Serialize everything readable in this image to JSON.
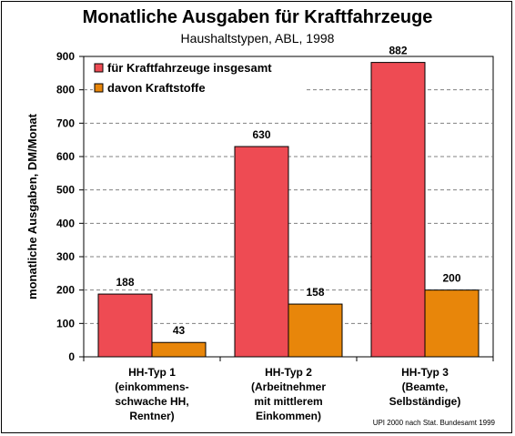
{
  "chart_data": {
    "type": "bar",
    "title": "Monatliche Ausgaben für Kraftfahrzeuge",
    "subtitle": "Haushaltstypen, ABL, 1998",
    "ylabel": "monatliche Ausgaben, DM/Monat",
    "xlabel": "",
    "ylim": [
      0,
      900
    ],
    "yticks": [
      0,
      100,
      200,
      300,
      400,
      500,
      600,
      700,
      800,
      900
    ],
    "grid": "horizontal-dashed",
    "legend_position": "top-left",
    "categories": [
      [
        "HH-Typ 1",
        "(einkommens-",
        "schwache HH,",
        "Rentner)"
      ],
      [
        "HH-Typ 2",
        "(Arbeitnehmer",
        "mit mittlerem",
        "Einkommen)"
      ],
      [
        "HH-Typ 3",
        "(Beamte,",
        "Selbständige)"
      ]
    ],
    "series": [
      {
        "name": "für Kraftfahrzeuge insgesamt",
        "color": "#ee4b53",
        "values": [
          188,
          630,
          882
        ]
      },
      {
        "name": "davon Kraftstoffe",
        "color": "#e8860a",
        "values": [
          43,
          158,
          200
        ]
      }
    ],
    "source_note": "UPI 2000 nach Stat. Bundesamt 1999"
  }
}
